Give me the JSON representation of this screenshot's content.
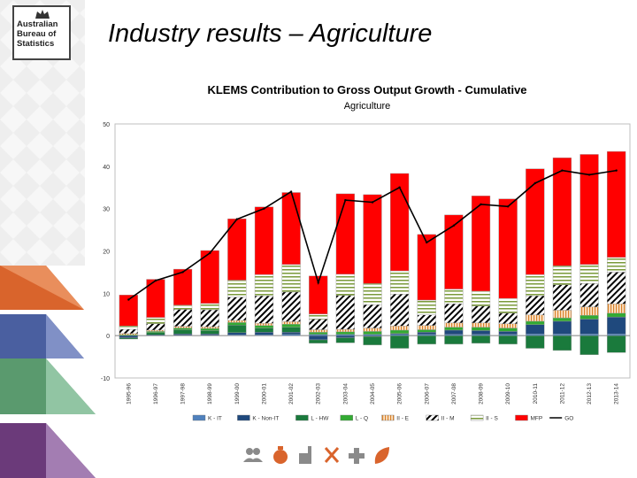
{
  "slide": {
    "title": "Industry results – Agriculture",
    "logo_lines": [
      "Australian",
      "Bureau of",
      "Statistics"
    ]
  },
  "chart_data": {
    "type": "bar",
    "title": "KLEMS Contribution to Gross Output Growth - Cumulative",
    "subtitle": "Agriculture",
    "ylim": [
      -10,
      50
    ],
    "yticks": [
      -10,
      0,
      10,
      20,
      30,
      40,
      50
    ],
    "grid": false,
    "legend_position": "bottom",
    "stacked": true,
    "categories": [
      "1995-96",
      "1996-97",
      "1997-98",
      "1998-99",
      "1999-00",
      "2000-01",
      "2001-02",
      "2002-03",
      "2003-04",
      "2004-05",
      "2005-06",
      "2006-07",
      "2007-08",
      "2008-09",
      "2009-10",
      "2010-11",
      "2011-12",
      "2012-13",
      "2013-14"
    ],
    "series": [
      {
        "name": "K - IT",
        "color": "#4f81bd",
        "pattern": "solid",
        "values": [
          0,
          0,
          0.1,
          0.1,
          0.2,
          0.2,
          0.3,
          0.3,
          0.3,
          0.3,
          0.3,
          0.3,
          0.3,
          0.3,
          0.3,
          0.4,
          0.4,
          0.4,
          0.4
        ]
      },
      {
        "name": "K - Non-IT",
        "color": "#1f497d",
        "pattern": "solid",
        "values": [
          -0.5,
          0.2,
          0.3,
          0.3,
          0.5,
          0.6,
          0.5,
          -1.0,
          -0.5,
          -0.2,
          0.2,
          0.5,
          1.0,
          0.9,
          0.7,
          2.2,
          3.0,
          3.5,
          4.0
        ]
      },
      {
        "name": "L - HW",
        "color": "#1a7a3c",
        "pattern": "solid",
        "values": [
          -0.3,
          0.5,
          1.0,
          0.8,
          1.8,
          1.0,
          1.2,
          -0.8,
          -1.2,
          -2.0,
          -3.0,
          -2.0,
          -2.0,
          -1.8,
          -2.0,
          -3.0,
          -3.5,
          -4.5,
          -4.0
        ]
      },
      {
        "name": "L - Q",
        "color": "#33aa33",
        "pattern": "solid",
        "values": [
          0.2,
          0.3,
          0.4,
          0.5,
          0.6,
          0.6,
          0.7,
          0.5,
          0.6,
          0.7,
          0.8,
          0.6,
          0.7,
          0.8,
          0.8,
          0.8,
          0.8,
          0.9,
          0.9
        ]
      },
      {
        "name": "II - E",
        "color": "#f2b880",
        "pattern": "vlines",
        "values": [
          0.3,
          0.3,
          0.4,
          0.4,
          0.5,
          0.5,
          0.6,
          0.6,
          0.6,
          0.8,
          1.0,
          1.0,
          1.0,
          1.0,
          1.0,
          1.5,
          1.8,
          2.0,
          2.2
        ]
      },
      {
        "name": "II - M",
        "color": "#000000",
        "pattern": "diag",
        "values": [
          1.0,
          1.5,
          4.0,
          4.0,
          5.5,
          6.5,
          7.0,
          2.5,
          8.0,
          5.5,
          7.5,
          2.5,
          4.5,
          4.0,
          2.5,
          4.5,
          6.0,
          5.5,
          7.5
        ]
      },
      {
        "name": "II - S",
        "color": "#9bbb59",
        "pattern": "hlines",
        "values": [
          0.8,
          1.5,
          1.0,
          1.5,
          4.0,
          5.0,
          6.5,
          1.2,
          5.0,
          5.0,
          5.5,
          3.5,
          3.5,
          3.5,
          3.5,
          5.0,
          4.5,
          4.5,
          3.5
        ]
      },
      {
        "name": "MFP",
        "color": "#ff0000",
        "pattern": "solid",
        "values": [
          7.3,
          9.0,
          8.5,
          12.5,
          14.5,
          16.0,
          17.0,
          9.0,
          19.0,
          21.0,
          23.0,
          15.5,
          17.5,
          22.5,
          23.5,
          25.0,
          25.5,
          26.0,
          25.0
        ]
      },
      {
        "name": "GO",
        "color": "#000000",
        "type": "line",
        "values": [
          8.5,
          13.0,
          15.0,
          19.5,
          27.5,
          30.0,
          34.0,
          12.5,
          32.0,
          31.5,
          35.0,
          22.0,
          26.0,
          31.0,
          30.5,
          36.0,
          39.0,
          38.0,
          39.0
        ]
      }
    ]
  }
}
